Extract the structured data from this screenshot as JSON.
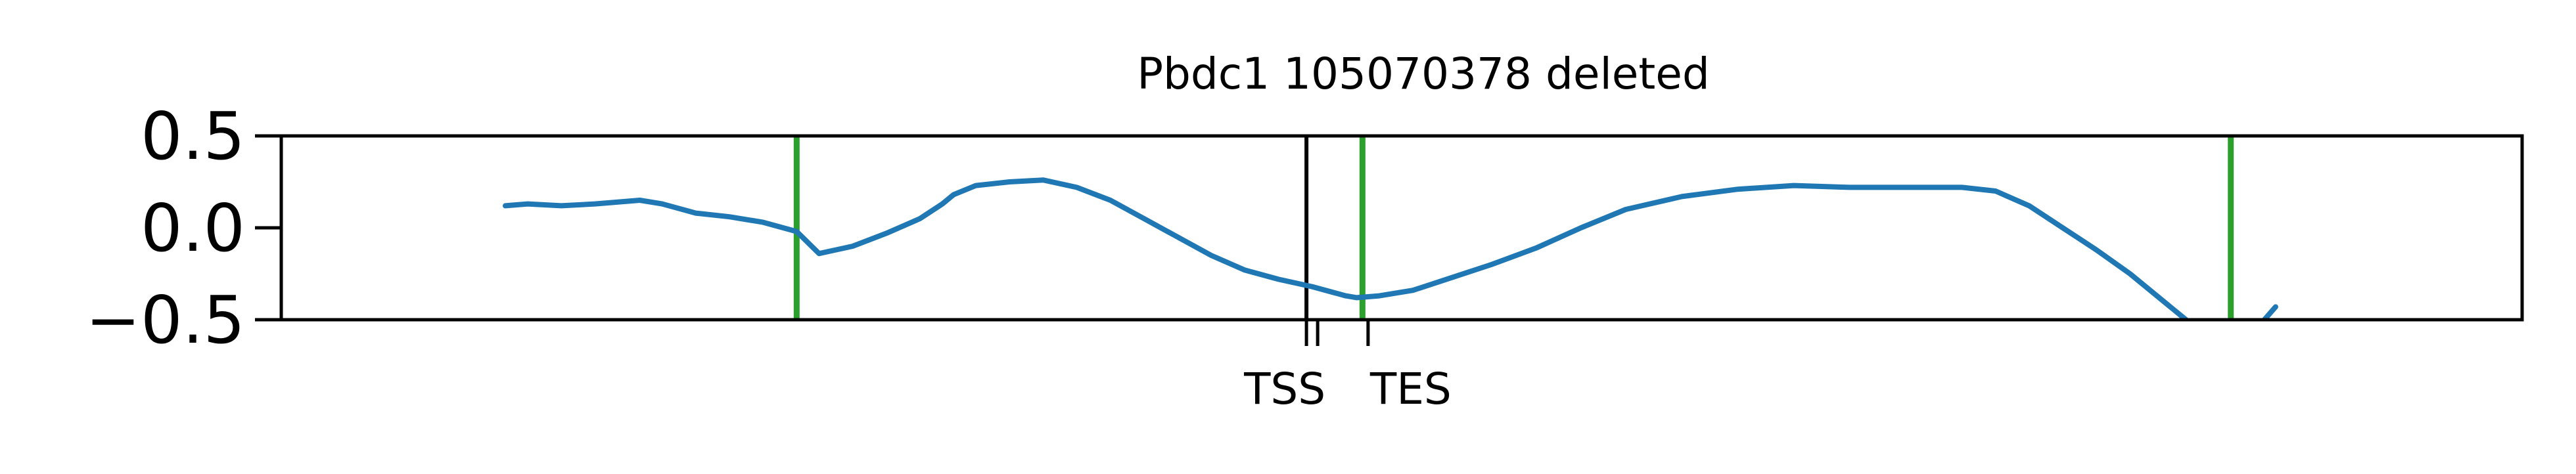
{
  "chart_data": {
    "type": "line",
    "title": "Pbdc1 105070378 deleted",
    "xlabel": "",
    "ylabel": "",
    "xlim": [
      -1.0,
      1.0
    ],
    "ylim": [
      -0.5,
      0.5
    ],
    "yticks": [
      {
        "value": 0.5,
        "label": "0.5"
      },
      {
        "value": 0.0,
        "label": "0.0"
      },
      {
        "value": -0.5,
        "label": "−0.5"
      }
    ],
    "xticks": [
      {
        "value": -0.085,
        "label": ""
      },
      {
        "value": -0.075,
        "label": "TSS"
      },
      {
        "value": -0.03,
        "label": "TES"
      }
    ],
    "grid": false,
    "legend": "none",
    "colors": {
      "series": "#1f77b4",
      "marker_lines": "#2ca02c",
      "tss_line": "#000000"
    },
    "vertical_lines": [
      {
        "x": -0.54,
        "color": "#2ca02c"
      },
      {
        "x": -0.085,
        "color": "#000000"
      },
      {
        "x": -0.035,
        "color": "#2ca02c"
      },
      {
        "x": 0.74,
        "color": "#2ca02c"
      }
    ],
    "series": [
      {
        "x": [
          -0.8,
          -0.78,
          -0.75,
          -0.72,
          -0.68,
          -0.66,
          -0.63,
          -0.6,
          -0.57,
          -0.54,
          -0.52,
          -0.49,
          -0.46,
          -0.43,
          -0.41,
          -0.4,
          -0.38,
          -0.35,
          -0.32,
          -0.29,
          -0.26,
          -0.23,
          -0.2,
          -0.17,
          -0.14,
          -0.11,
          -0.08,
          -0.05,
          -0.04,
          -0.02,
          0.01,
          0.04,
          0.08,
          0.12,
          0.16,
          0.2,
          0.25,
          0.3,
          0.35,
          0.4,
          0.45,
          0.5,
          0.53,
          0.56,
          0.59,
          0.62,
          0.65,
          0.68,
          0.7
        ],
        "y": [
          0.12,
          0.13,
          0.12,
          0.13,
          0.15,
          0.13,
          0.08,
          0.06,
          0.03,
          -0.02,
          -0.14,
          -0.1,
          -0.03,
          0.05,
          0.13,
          0.18,
          0.23,
          0.25,
          0.26,
          0.22,
          0.15,
          0.05,
          -0.05,
          -0.15,
          -0.23,
          -0.28,
          -0.32,
          -0.37,
          -0.38,
          -0.37,
          -0.34,
          -0.28,
          -0.2,
          -0.11,
          0.0,
          0.1,
          0.17,
          0.21,
          0.23,
          0.22,
          0.22,
          0.22,
          0.2,
          0.12,
          0.0,
          -0.12,
          -0.25,
          -0.4,
          -0.5
        ]
      },
      {
        "x": [
          0.77,
          0.78
        ],
        "y": [
          -0.5,
          -0.43
        ]
      }
    ]
  }
}
